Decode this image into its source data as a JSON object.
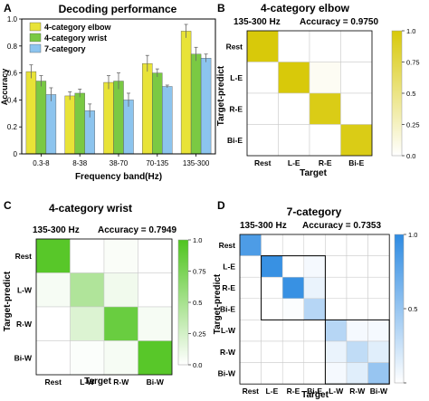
{
  "chart_data": [
    {
      "panel": "A",
      "type": "bar",
      "title": "Decoding performance",
      "xlabel": "Frequency band(Hz)",
      "ylabel": "Accuracy",
      "ylim": [
        0,
        1.0
      ],
      "yticks": [
        "0",
        "0.2",
        "0.4",
        "0.6",
        "0.8",
        "1.0"
      ],
      "categories": [
        "0.3-8",
        "8-38",
        "38-70",
        "70-135",
        "135-300"
      ],
      "legend_position": "top-left",
      "series": [
        {
          "name": "4-category elbow",
          "color": "#e8e337",
          "values": [
            0.61,
            0.43,
            0.53,
            0.67,
            0.91
          ],
          "errors": [
            0.05,
            0.03,
            0.05,
            0.06,
            0.05
          ]
        },
        {
          "name": "4-category wrist",
          "color": "#7ac943",
          "values": [
            0.54,
            0.45,
            0.54,
            0.6,
            0.74
          ],
          "errors": [
            0.04,
            0.03,
            0.06,
            0.03,
            0.05
          ]
        },
        {
          "name": "7-category",
          "color": "#8cc4ee",
          "values": [
            0.44,
            0.32,
            0.4,
            0.5,
            0.71
          ],
          "errors": [
            0.05,
            0.05,
            0.05,
            0.01,
            0.03
          ]
        }
      ]
    },
    {
      "panel": "B",
      "type": "heatmap",
      "title": "4-category elbow",
      "info_left": "135-300 Hz",
      "info_right": "Accuracy = 0.9750",
      "xlabel": "Target",
      "ylabel": "Target-predict",
      "labels": [
        "Rest",
        "L-E",
        "R-E",
        "Bi-E"
      ],
      "color": "#d8c90a",
      "colorbar_ticks": [
        "1.0",
        "0.75",
        "0.5",
        "0.25",
        "0.0"
      ],
      "matrix": [
        [
          1.0,
          0,
          0,
          0
        ],
        [
          0,
          1.0,
          0.05,
          0
        ],
        [
          0,
          0,
          0.95,
          0
        ],
        [
          0,
          0,
          0,
          0.95
        ]
      ]
    },
    {
      "panel": "C",
      "type": "heatmap",
      "title": "4-category wrist",
      "info_left": "135-300 Hz",
      "info_right": "Accuracy = 0.7949",
      "xlabel": "Target",
      "ylabel": "Target-predict",
      "labels": [
        "Rest",
        "L-W",
        "R-W",
        "Bi-W"
      ],
      "color": "#4fc41e",
      "colorbar_ticks": [
        "1.0",
        "0.75",
        "0.5",
        "0.25",
        "0.0"
      ],
      "matrix": [
        [
          0.95,
          0,
          0.03,
          0
        ],
        [
          0.05,
          0.45,
          0.08,
          0
        ],
        [
          0,
          0.2,
          0.85,
          0.05
        ],
        [
          0,
          0.02,
          0.05,
          0.95
        ]
      ]
    },
    {
      "panel": "D",
      "type": "heatmap",
      "title": "7-category",
      "info_left": "135-300 Hz",
      "info_right": "Accuracy = 0.7353",
      "xlabel": "Target",
      "ylabel": "Target-predict",
      "labels": [
        "Rest",
        "L-E",
        "R-E",
        "Bi-E",
        "L-W",
        "R-W",
        "Bi-W"
      ],
      "color": "#2e8be2",
      "colorbar_ticks": [
        "1.0",
        "0.5",
        ""
      ],
      "matrix": [
        [
          0.85,
          0,
          0,
          0,
          0,
          0,
          0
        ],
        [
          0,
          0.95,
          0,
          0.05,
          0,
          0,
          0
        ],
        [
          0,
          0,
          0.95,
          0.1,
          0,
          0,
          0
        ],
        [
          0,
          0,
          0.02,
          0.35,
          0,
          0,
          0
        ],
        [
          0,
          0,
          0,
          0,
          0.35,
          0.05,
          0.05
        ],
        [
          0,
          0,
          0,
          0,
          0.1,
          0.3,
          0.15
        ],
        [
          0,
          0,
          0,
          0,
          0.05,
          0.15,
          0.5
        ]
      ]
    }
  ],
  "panel_letters": [
    "A",
    "B",
    "C",
    "D"
  ]
}
